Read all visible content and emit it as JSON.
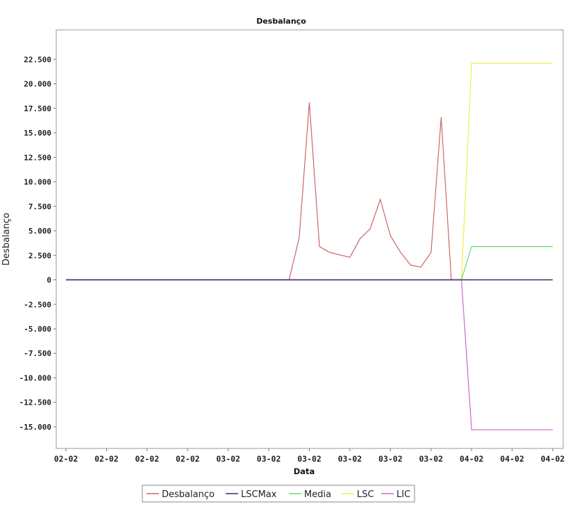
{
  "chart_data": {
    "type": "line",
    "title": "Desbalanço",
    "xlabel": "Data",
    "ylabel": "Desbalanço",
    "x_tick_labels": [
      "02-02",
      "02-02",
      "02-02",
      "02-02",
      "03-02",
      "03-02",
      "03-02",
      "03-02",
      "03-02",
      "03-02",
      "04-02",
      "04-02",
      "04-02"
    ],
    "y_tick_labels": [
      "22.500",
      "20.000",
      "17.500",
      "15.000",
      "12.500",
      "10.000",
      "7.500",
      "5.000",
      "2.500",
      "0",
      "-2.500",
      "-5.000",
      "-7.500",
      "-10.000",
      "-12.500",
      "-15.000"
    ],
    "y_ticks": [
      22500,
      20000,
      17500,
      15000,
      12500,
      10000,
      7500,
      5000,
      2500,
      0,
      -2500,
      -5000,
      -7500,
      -10000,
      -12500,
      -15000
    ],
    "ylim": [
      -17200,
      25500
    ],
    "x_index_range": [
      0,
      48
    ],
    "grid": false,
    "legend_position": "bottom",
    "series": [
      {
        "name": "Desbalanço",
        "color": "#cc6666",
        "x": [
          0,
          22,
          23,
          24,
          25,
          26,
          28,
          29,
          30,
          31,
          32,
          33,
          34,
          35,
          36,
          37,
          38,
          39,
          40
        ],
        "values": [
          0,
          0,
          4300,
          18100,
          3400,
          2800,
          2300,
          4200,
          5200,
          8200,
          4500,
          2800,
          1500,
          1300,
          2800,
          16600,
          0,
          0,
          0
        ]
      },
      {
        "name": "LSCMax",
        "color": "#333366",
        "x": [
          0,
          48
        ],
        "values": [
          0,
          0
        ]
      },
      {
        "name": "Media",
        "color": "#66dd66",
        "x": [
          0,
          39,
          40,
          48
        ],
        "values": [
          0,
          0,
          3400,
          3400
        ]
      },
      {
        "name": "LSC",
        "color": "#eeee44",
        "x": [
          0,
          39,
          40,
          48
        ],
        "values": [
          0,
          0,
          22100,
          22100
        ]
      },
      {
        "name": "LIC",
        "color": "#cc66cc",
        "x": [
          0,
          39,
          40,
          48
        ],
        "values": [
          0,
          0,
          -15300,
          -15300
        ]
      }
    ]
  }
}
